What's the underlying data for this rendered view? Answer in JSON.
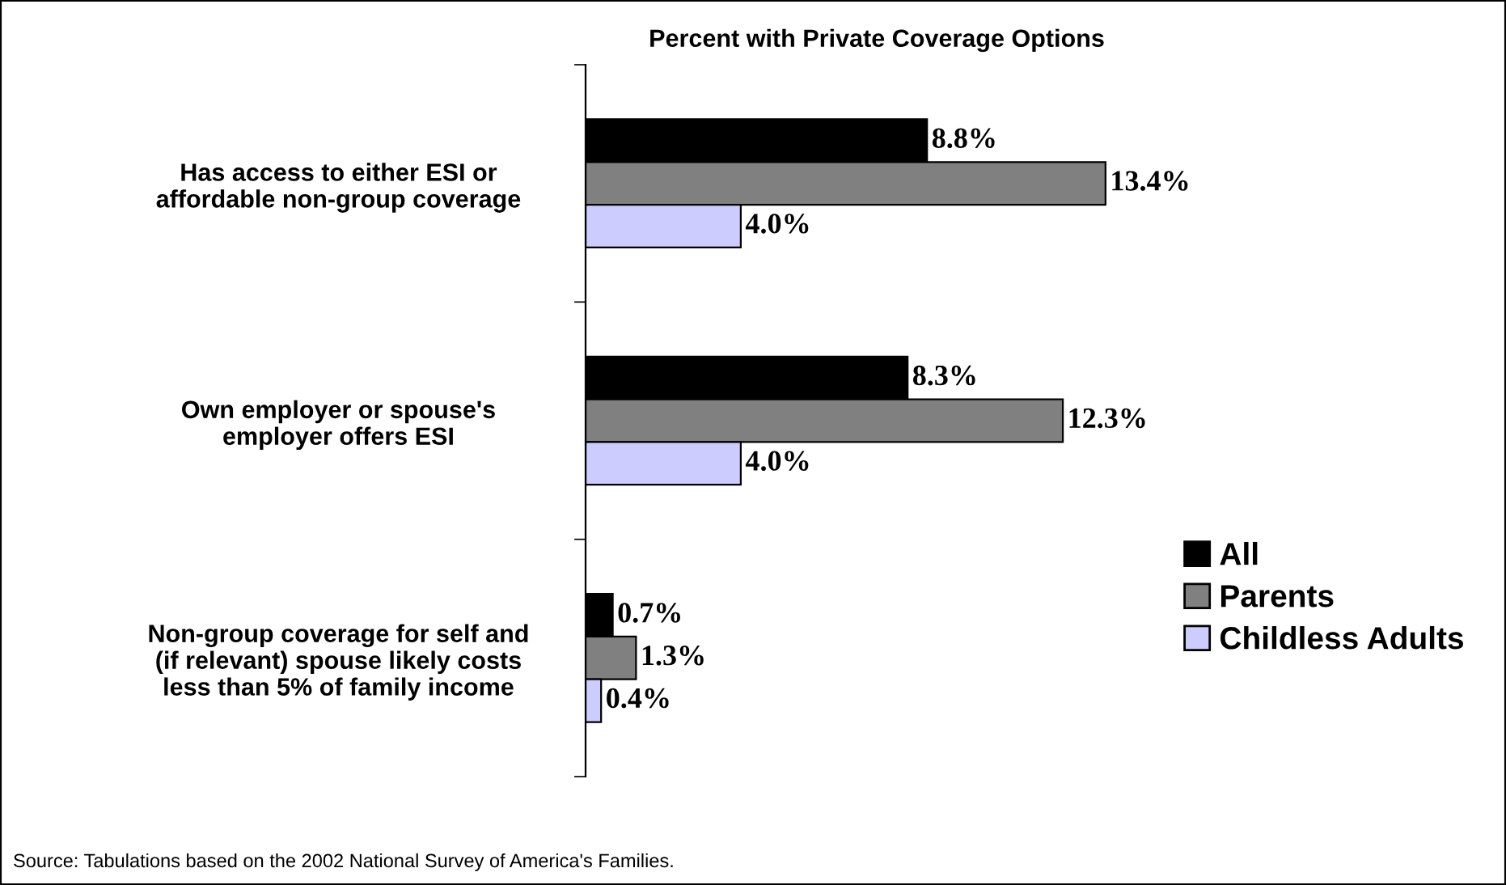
{
  "chart_data": {
    "type": "bar",
    "orientation": "horizontal",
    "title": "Percent with Private Coverage Options",
    "categories": [
      "Has access to either ESI or\naffordable non-group coverage",
      "Own employer or spouse's\nemployer offers ESI",
      "Non-group coverage for self and\n(if relevant) spouse likely costs\nless than 5% of family income"
    ],
    "series": [
      {
        "name": "All",
        "color": "#000000",
        "values": [
          8.8,
          8.3,
          0.7
        ],
        "value_labels": [
          "8.8%",
          "8.3%",
          "0.7%"
        ]
      },
      {
        "name": "Parents",
        "color": "#808080",
        "values": [
          13.4,
          12.3,
          1.3
        ],
        "value_labels": [
          "13.4%",
          "12.3%",
          "1.3%"
        ]
      },
      {
        "name": "Childless Adults",
        "color": "#ccccff",
        "values": [
          4.0,
          4.0,
          0.4
        ],
        "value_labels": [
          "4.0%",
          "4.0%",
          "0.4%"
        ]
      }
    ],
    "tick_labels": "y",
    "grid": false,
    "legend": "right",
    "annotations": [
      "Source: Tabulations based on the 2002 National Survey of America's Families."
    ]
  }
}
